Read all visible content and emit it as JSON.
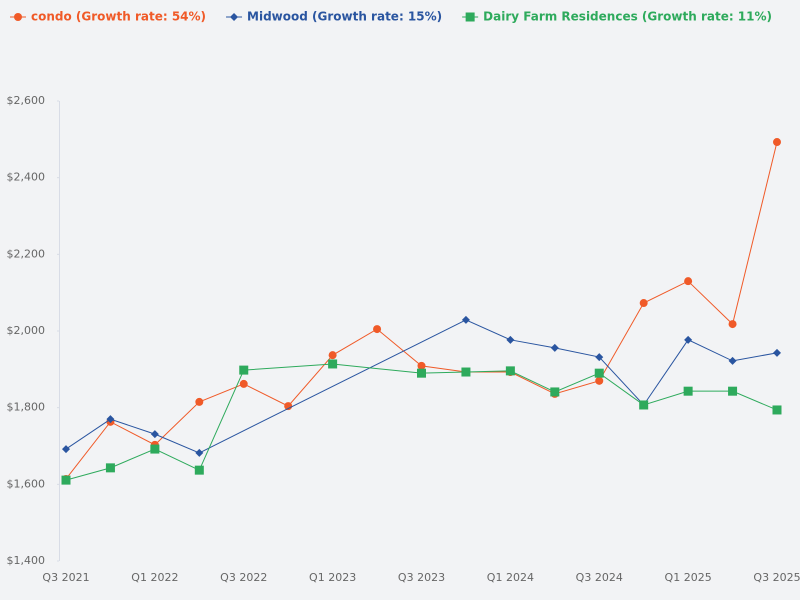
{
  "chart_data": {
    "type": "line",
    "categories": [
      "Q3 2021",
      null,
      "Q1 2022",
      null,
      "Q3 2022",
      null,
      "Q1 2023",
      null,
      "Q3 2023",
      null,
      "Q1 2024",
      null,
      "Q3 2024",
      null,
      "Q1 2025",
      null,
      "Q3 2025"
    ],
    "series": [
      {
        "name": "condo (Growth rate: 54%)",
        "color": "#f05a28",
        "marker": "circle",
        "values": [
          1614,
          1763,
          1703,
          1815,
          1862,
          1804,
          1937,
          2005,
          1909,
          1893,
          1893,
          1836,
          1870,
          2073,
          2130,
          2018,
          2493
        ]
      },
      {
        "name": "Midwood (Growth rate: 15%)",
        "color": "#2a55a0",
        "marker": "diamond",
        "values": [
          1692,
          1770,
          1731,
          1682,
          null,
          null,
          null,
          null,
          null,
          2029,
          1977,
          1956,
          1932,
          1807,
          1977,
          1922,
          1943
        ]
      },
      {
        "name": "Dairy Farm Residences (Growth rate: 11%)",
        "color": "#2eaa5c",
        "marker": "square",
        "values": [
          1611,
          1643,
          1692,
          1637,
          1898,
          null,
          1914,
          null,
          1890,
          1893,
          1896,
          1841,
          1890,
          1807,
          1843,
          1843,
          1794
        ]
      }
    ],
    "ylim": [
      1400,
      2600
    ],
    "yticks": [
      {
        "value": 1400,
        "label": "$1,400"
      },
      {
        "value": 1600,
        "label": "$1,600"
      },
      {
        "value": 1800,
        "label": "$1,800"
      },
      {
        "value": 2000,
        "label": "$2,000"
      },
      {
        "value": 2200,
        "label": "$2,200"
      },
      {
        "value": 2400,
        "label": "$2,400"
      },
      {
        "value": 2600,
        "label": "$2,600"
      }
    ],
    "grid": false,
    "span_gaps": true,
    "legend": "top"
  }
}
